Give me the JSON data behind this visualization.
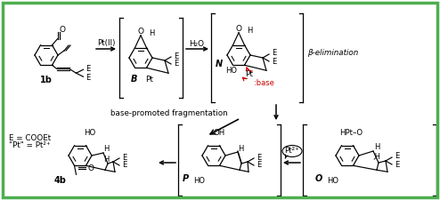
{
  "bg_color": "#ffffff",
  "border_color": "#4caf50",
  "fig_w": 4.94,
  "fig_h": 2.25,
  "dpi": 100,
  "red_color": "#cc0000",
  "label_1b": "1b",
  "label_B": "B",
  "label_N": "N",
  "label_P": "P",
  "label_O": "O",
  "label_4b": "4b",
  "reagent_PtII": "Pt(II)",
  "reagent_H2O": "H₂O",
  "reagent_Pt2plus": "Pt²⁺",
  "label_E_def": "E = COOEt",
  "label_Pt_def": "\"Pt\" = Pt²⁺",
  "label_base": "base-promoted fragmentation",
  "label_beta": "β-elimination",
  "label_base2": ":base"
}
